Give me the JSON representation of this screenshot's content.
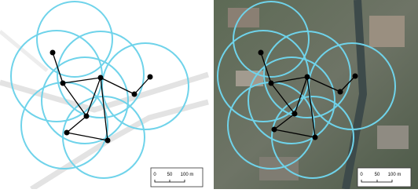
{
  "panels": [
    {
      "scale_bar": {
        "labels": [
          "0",
          "50",
          "100 m"
        ]
      }
    },
    {
      "scale_bar": {
        "labels": [
          "0",
          "50",
          "100 m"
        ]
      }
    }
  ]
}
